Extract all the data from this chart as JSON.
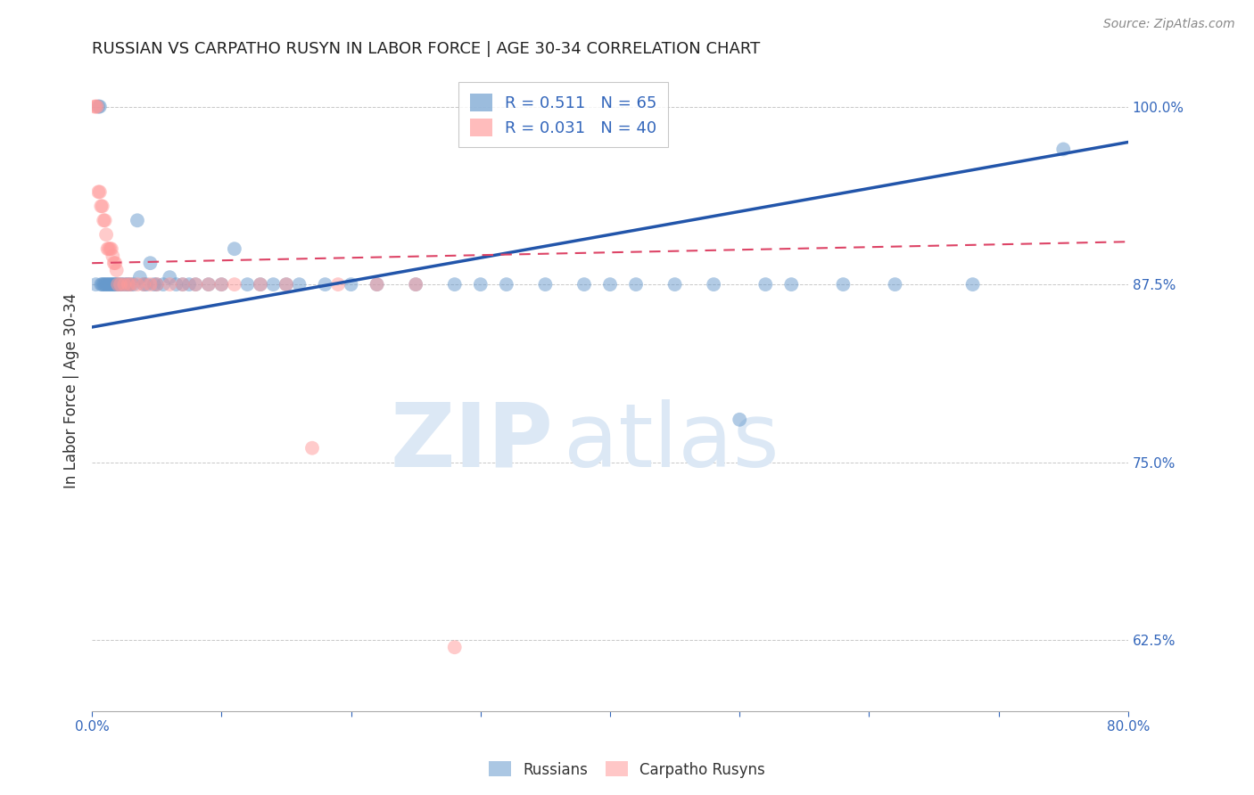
{
  "title": "RUSSIAN VS CARPATHO RUSYN IN LABOR FORCE | AGE 30-34 CORRELATION CHART",
  "source": "Source: ZipAtlas.com",
  "ylabel": "In Labor Force | Age 30-34",
  "xlim": [
    0.0,
    0.8
  ],
  "ylim": [
    0.575,
    1.025
  ],
  "xticks": [
    0.0,
    0.1,
    0.2,
    0.3,
    0.4,
    0.5,
    0.6,
    0.7,
    0.8
  ],
  "xticklabels": [
    "0.0%",
    "",
    "",
    "",
    "",
    "",
    "",
    "",
    "80.0%"
  ],
  "yticks": [
    0.625,
    0.75,
    0.875,
    1.0
  ],
  "yticklabels": [
    "62.5%",
    "75.0%",
    "87.5%",
    "100.0%"
  ],
  "background_color": "#ffffff",
  "grid_color": "#c8c8c8",
  "russian_color": "#6699cc",
  "carpatho_color": "#ff9999",
  "russian_R": 0.511,
  "russian_N": 65,
  "carpatho_R": 0.031,
  "carpatho_N": 40,
  "legend_label_russian": "Russians",
  "legend_label_carpatho": "Carpatho Rusyns",
  "russian_points_x": [
    0.003,
    0.005,
    0.006,
    0.007,
    0.008,
    0.009,
    0.01,
    0.011,
    0.012,
    0.013,
    0.014,
    0.015,
    0.016,
    0.017,
    0.018,
    0.019,
    0.02,
    0.022,
    0.023,
    0.025,
    0.027,
    0.028,
    0.03,
    0.032,
    0.035,
    0.037,
    0.04,
    0.042,
    0.045,
    0.048,
    0.05,
    0.055,
    0.06,
    0.065,
    0.07,
    0.075,
    0.08,
    0.09,
    0.1,
    0.11,
    0.12,
    0.13,
    0.14,
    0.15,
    0.16,
    0.18,
    0.2,
    0.22,
    0.25,
    0.28,
    0.3,
    0.32,
    0.35,
    0.38,
    0.4,
    0.42,
    0.45,
    0.48,
    0.5,
    0.52,
    0.54,
    0.58,
    0.62,
    0.68,
    0.75
  ],
  "russian_points_y": [
    0.875,
    1.0,
    1.0,
    0.875,
    0.875,
    0.875,
    0.875,
    0.875,
    0.875,
    0.875,
    0.875,
    0.875,
    0.875,
    0.875,
    0.875,
    0.875,
    0.875,
    0.875,
    0.875,
    0.875,
    0.875,
    0.875,
    0.875,
    0.875,
    0.92,
    0.88,
    0.875,
    0.875,
    0.89,
    0.875,
    0.875,
    0.875,
    0.88,
    0.875,
    0.875,
    0.875,
    0.875,
    0.875,
    0.875,
    0.9,
    0.875,
    0.875,
    0.875,
    0.875,
    0.875,
    0.875,
    0.875,
    0.875,
    0.875,
    0.875,
    0.875,
    0.875,
    0.875,
    0.875,
    0.875,
    0.875,
    0.875,
    0.875,
    0.78,
    0.875,
    0.875,
    0.875,
    0.875,
    0.875,
    0.97
  ],
  "carpatho_points_x": [
    0.002,
    0.003,
    0.004,
    0.005,
    0.006,
    0.007,
    0.008,
    0.009,
    0.01,
    0.011,
    0.012,
    0.013,
    0.014,
    0.015,
    0.016,
    0.017,
    0.018,
    0.019,
    0.02,
    0.022,
    0.025,
    0.028,
    0.03,
    0.035,
    0.04,
    0.045,
    0.05,
    0.06,
    0.07,
    0.08,
    0.09,
    0.1,
    0.11,
    0.13,
    0.15,
    0.17,
    0.19,
    0.22,
    0.25,
    0.28
  ],
  "carpatho_points_y": [
    1.0,
    1.0,
    1.0,
    0.94,
    0.94,
    0.93,
    0.93,
    0.92,
    0.92,
    0.91,
    0.9,
    0.9,
    0.9,
    0.9,
    0.895,
    0.89,
    0.89,
    0.885,
    0.875,
    0.875,
    0.875,
    0.875,
    0.875,
    0.875,
    0.875,
    0.875,
    0.875,
    0.875,
    0.875,
    0.875,
    0.875,
    0.875,
    0.875,
    0.875,
    0.875,
    0.76,
    0.875,
    0.875,
    0.875,
    0.62
  ],
  "russian_trend_x0": 0.0,
  "russian_trend_y0": 0.845,
  "russian_trend_x1": 0.8,
  "russian_trend_y1": 0.975,
  "carpatho_trend_x0": 0.0,
  "carpatho_trend_y0": 0.89,
  "carpatho_trend_x1": 0.8,
  "carpatho_trend_y1": 0.905
}
